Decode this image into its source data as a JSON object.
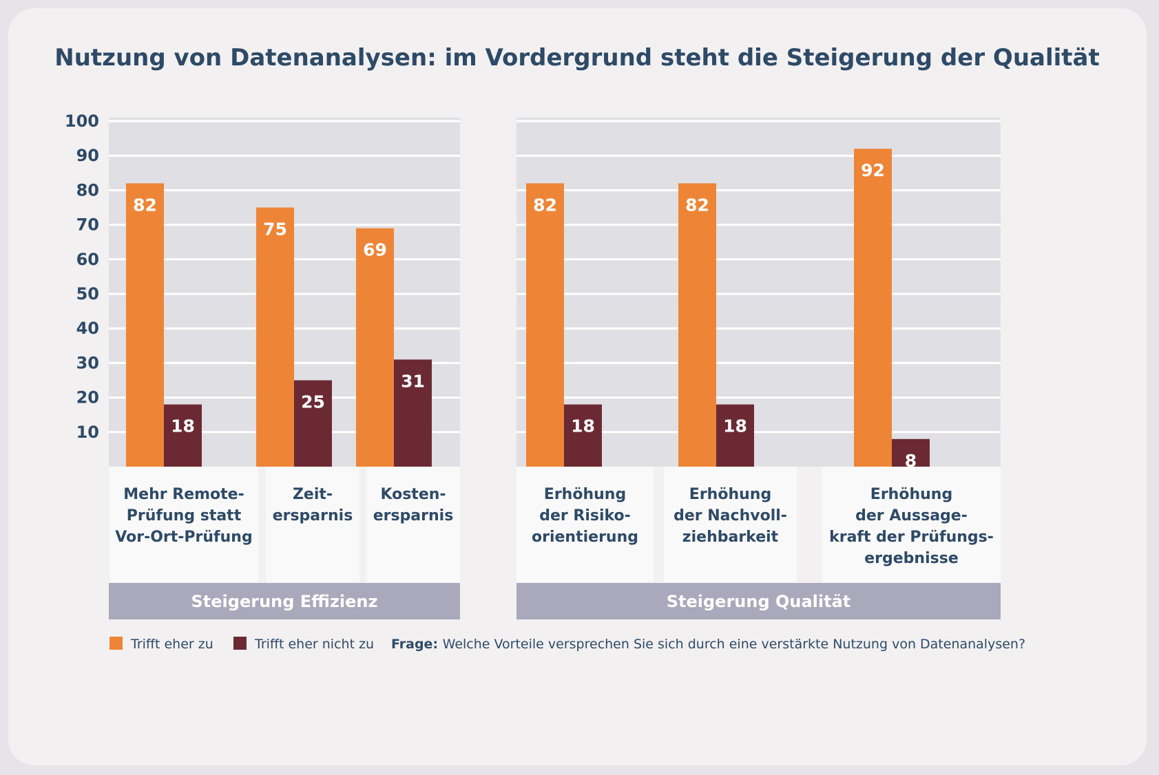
{
  "chart_data": {
    "type": "bar",
    "title": "Nutzung von Datenanalysen: im Vordergrund steht die Steigerung der Qualität",
    "ylim": [
      0,
      100
    ],
    "yticks": [
      10,
      20,
      30,
      40,
      50,
      60,
      70,
      80,
      90,
      100
    ],
    "grid": true,
    "categories": [
      [
        "Mehr Remote-",
        "Prüfung statt",
        "Vor-Ort-Prüfung"
      ],
      [
        "Zeit-",
        "ersparnis"
      ],
      [
        "Kosten-",
        "ersparnis"
      ],
      [
        "Erhöhung",
        "der Risiko-",
        "orientierung"
      ],
      [
        "Erhöhung",
        "der Nachvoll-",
        "ziehbarkeit"
      ],
      [
        "Erhöhung",
        "der Aussage-",
        "kraft der Prüfungs-",
        "ergebnisse"
      ]
    ],
    "groups": [
      {
        "label": "Steigerung Effizienz",
        "categories": [
          0,
          1,
          2
        ]
      },
      {
        "label": "Steigerung Qualität",
        "categories": [
          3,
          4,
          5
        ]
      }
    ],
    "series": [
      {
        "name": "Trifft eher zu",
        "color": "#ee8536",
        "values": [
          82,
          75,
          69,
          82,
          82,
          92
        ]
      },
      {
        "name": "Trifft eher nicht zu",
        "color": "#6b2a33",
        "values": [
          18,
          25,
          31,
          18,
          18,
          8
        ]
      }
    ],
    "legend_position": "bottom-left",
    "note": {
      "bold": "Frage:",
      "text": "Welche Vorteile versprechen Sie sich durch eine verstärkte Nutzung von Datenanalysen?"
    }
  },
  "colors": {
    "plot_bg": "#e0dfe4",
    "category_bg": "#faf9fa",
    "group_bar": "#aaa8bb",
    "text": "#2e4a66"
  }
}
